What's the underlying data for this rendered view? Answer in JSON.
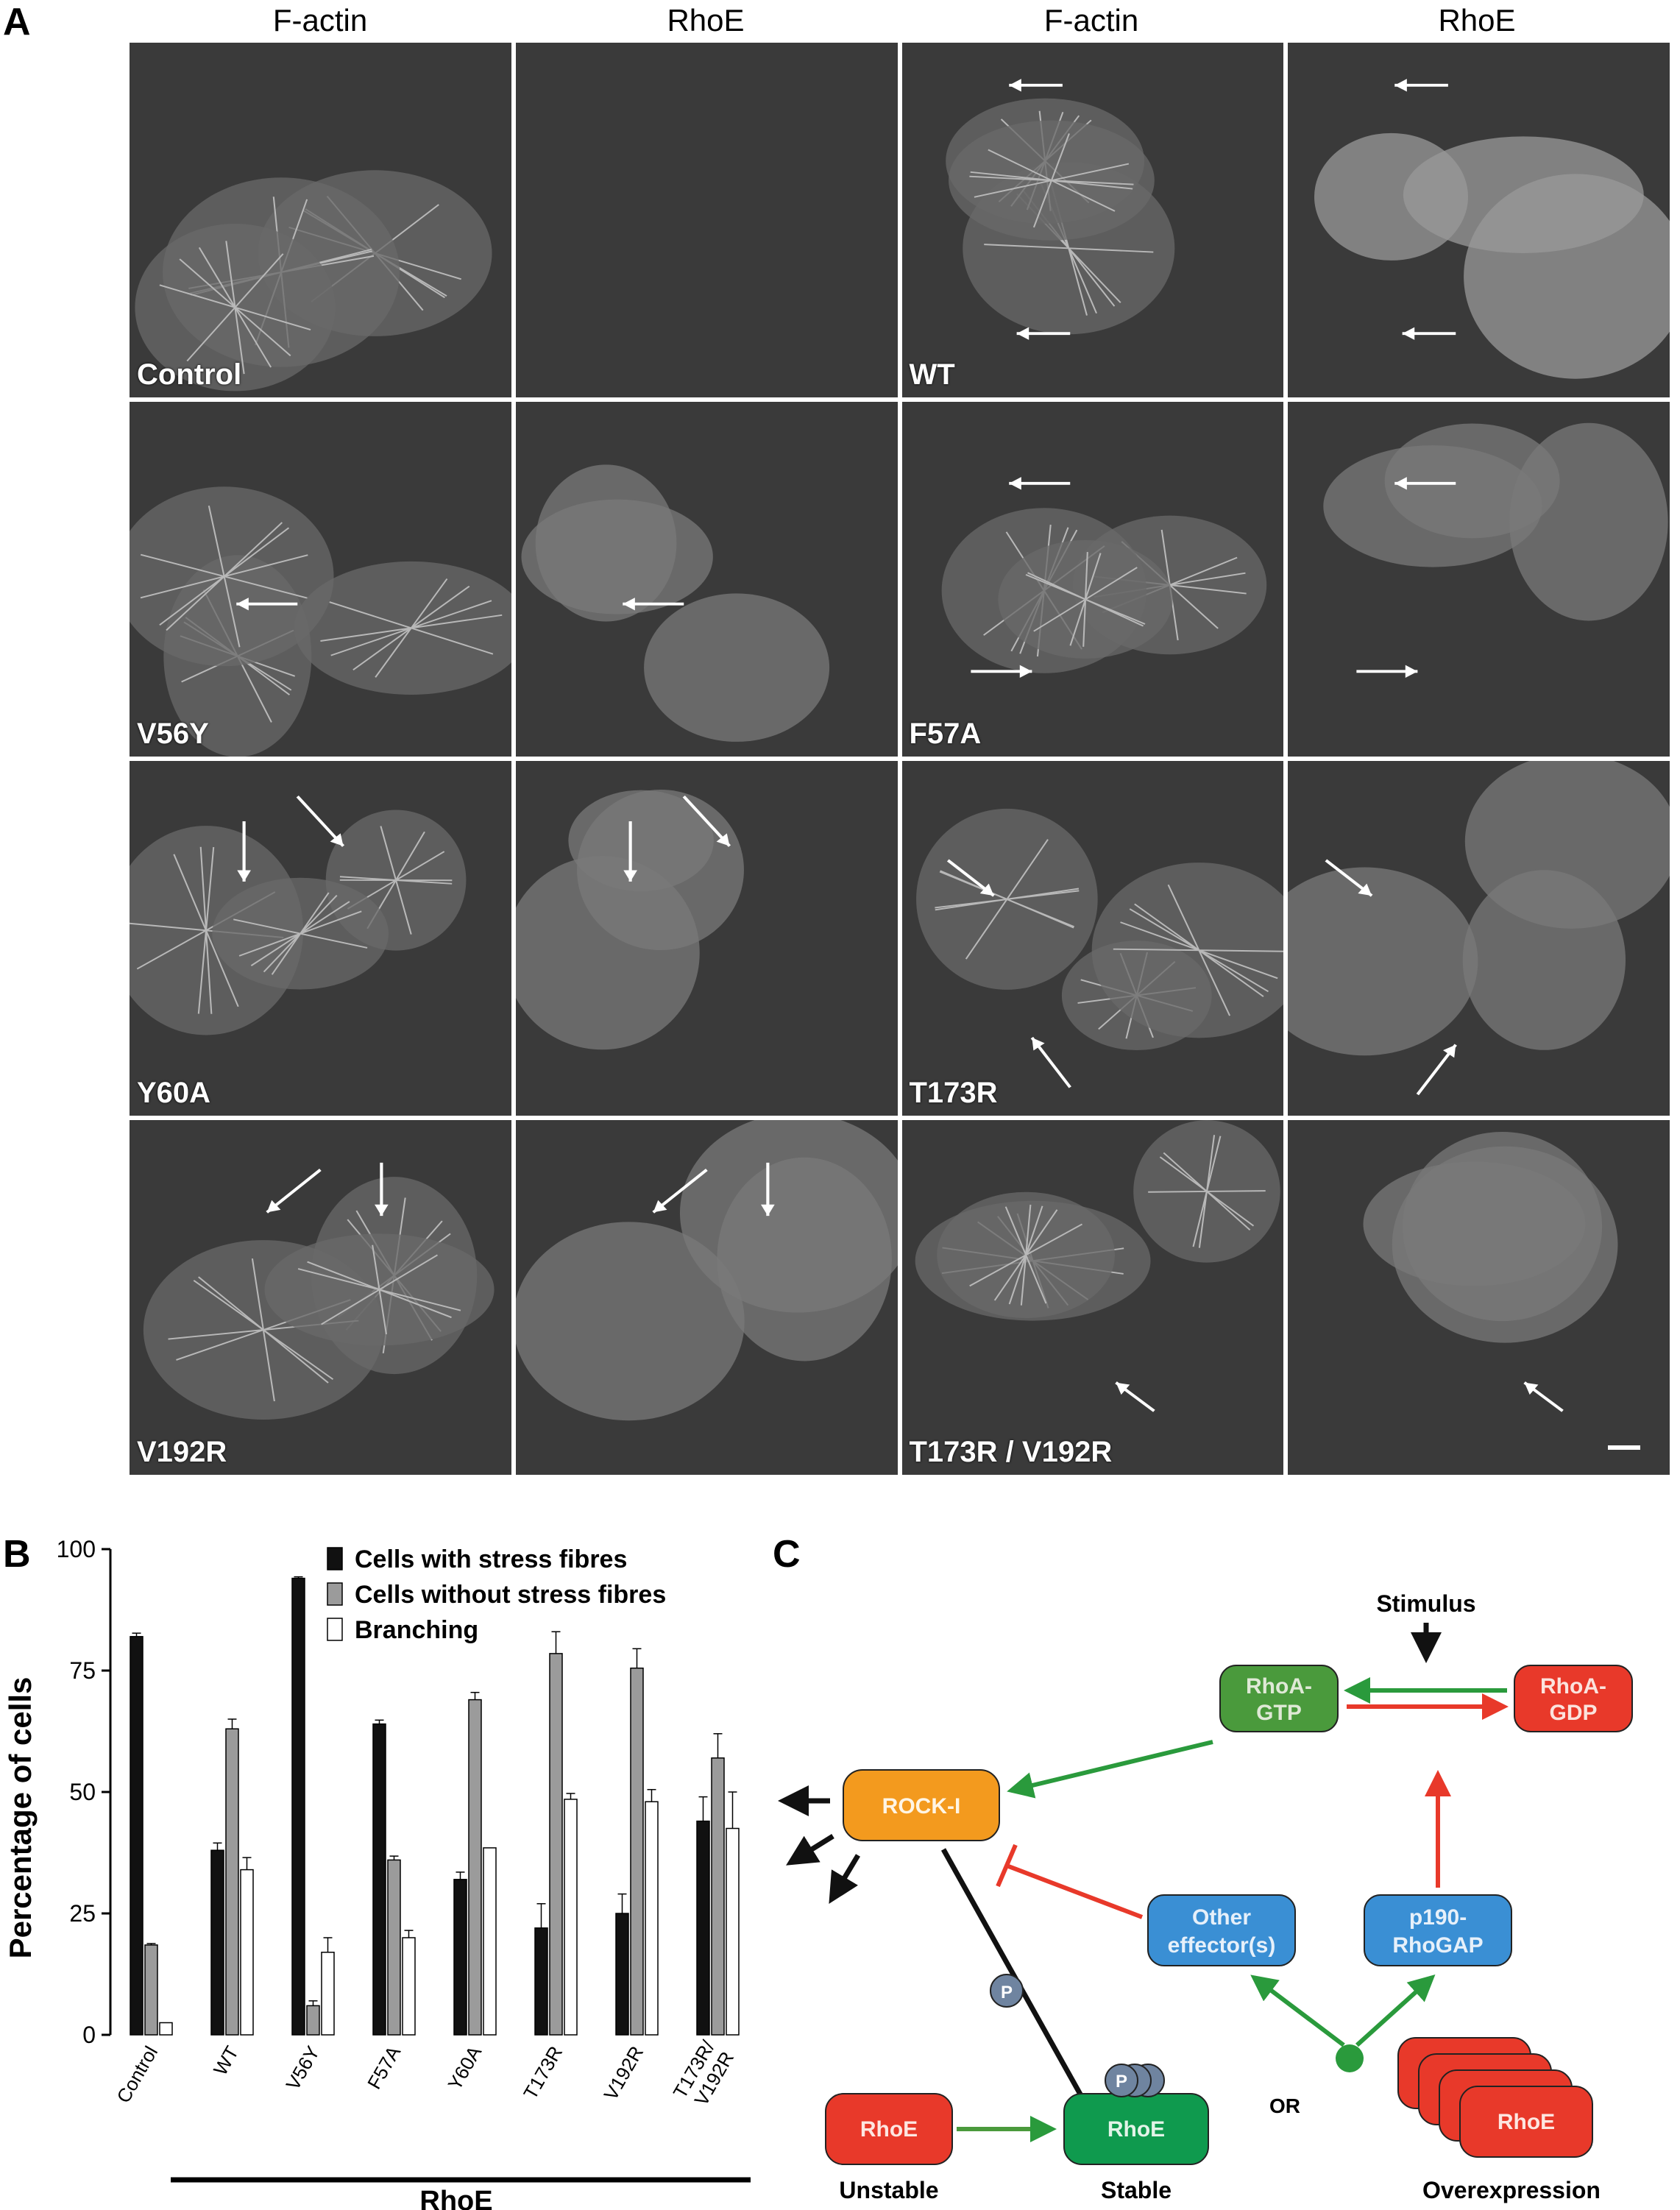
{
  "panel_a": {
    "letter": "A",
    "column_headers": [
      "F-actin",
      "RhoE",
      "F-actin",
      "RhoE"
    ],
    "rows": [
      {
        "left_label": "Control",
        "right_label": "WT"
      },
      {
        "left_label": "V56Y",
        "right_label": "F57A"
      },
      {
        "left_label": "Y60A",
        "right_label": "T173R"
      },
      {
        "left_label": "V192R",
        "right_label": "T173R / V192R"
      }
    ],
    "arrow_icon": "white-arrow-icon",
    "scale_bar_icon": "scale-bar-icon"
  },
  "panel_b": {
    "letter": "B",
    "group_label": "RhoE"
  },
  "chart_data": {
    "type": "bar",
    "categories": [
      "Control",
      "WT",
      "V56Y",
      "F57A",
      "Y60A",
      "T173R",
      "V192R",
      "T173R/\nV192R"
    ],
    "series": [
      {
        "name": "Cells with stress fibres",
        "color": "#111111",
        "values": [
          82,
          38,
          94,
          64,
          32,
          22,
          25,
          44
        ],
        "errors": [
          0.7,
          1.5,
          0.3,
          0.8,
          1.5,
          5,
          4,
          5
        ]
      },
      {
        "name": "Cells without stress fibres",
        "color": "#9b9b9b",
        "values": [
          18.5,
          63,
          6,
          36,
          69,
          78.5,
          75.5,
          57
        ],
        "errors": [
          0.3,
          2,
          1,
          0.8,
          1.5,
          4.5,
          4,
          5
        ]
      },
      {
        "name": "Branching",
        "color": "#ffffff",
        "values": [
          2.5,
          34,
          17,
          20,
          38.5,
          48.5,
          48,
          42.5
        ],
        "errors": [
          0,
          2.5,
          3,
          1.5,
          0,
          1.2,
          2.5,
          7.5
        ]
      }
    ],
    "ylabel": "Percentage of cells",
    "ylim": [
      0,
      100
    ],
    "yticks": [
      0,
      25,
      50,
      75,
      100
    ],
    "legend_placement": "top-right"
  },
  "panel_c": {
    "letter": "C",
    "nodes": {
      "stimulus": "Stimulus",
      "rhoa_gtp": [
        "RhoA-",
        "GTP"
      ],
      "rhoa_gdp": [
        "RhoA-",
        "GDP"
      ],
      "rock": "ROCK-I",
      "other_effectors": [
        "Other",
        "effector(s)"
      ],
      "p190": [
        "p190-",
        "RhoGAP"
      ],
      "rhoe_unstable": "RhoE",
      "rhoe_stable": "RhoE",
      "rhoe_overexpression": "RhoE",
      "phospho": "P",
      "or": "OR"
    },
    "captions": {
      "unstable": "Unstable",
      "stable": "Stable",
      "overexpression": "Overexpression"
    },
    "colors": {
      "rhoa_gtp": "#4a9a3c",
      "rhoa_gdp": "#e8392a",
      "rock": "#f39a1e",
      "effector_blue": "#3a8fd4",
      "rhoe_red": "#e8392a",
      "rhoe_stable_green": "#0f9a4e",
      "phospho_grey": "#6f84a0",
      "arrow_green": "#2a9a3c",
      "arrow_red": "#e8392a"
    }
  }
}
